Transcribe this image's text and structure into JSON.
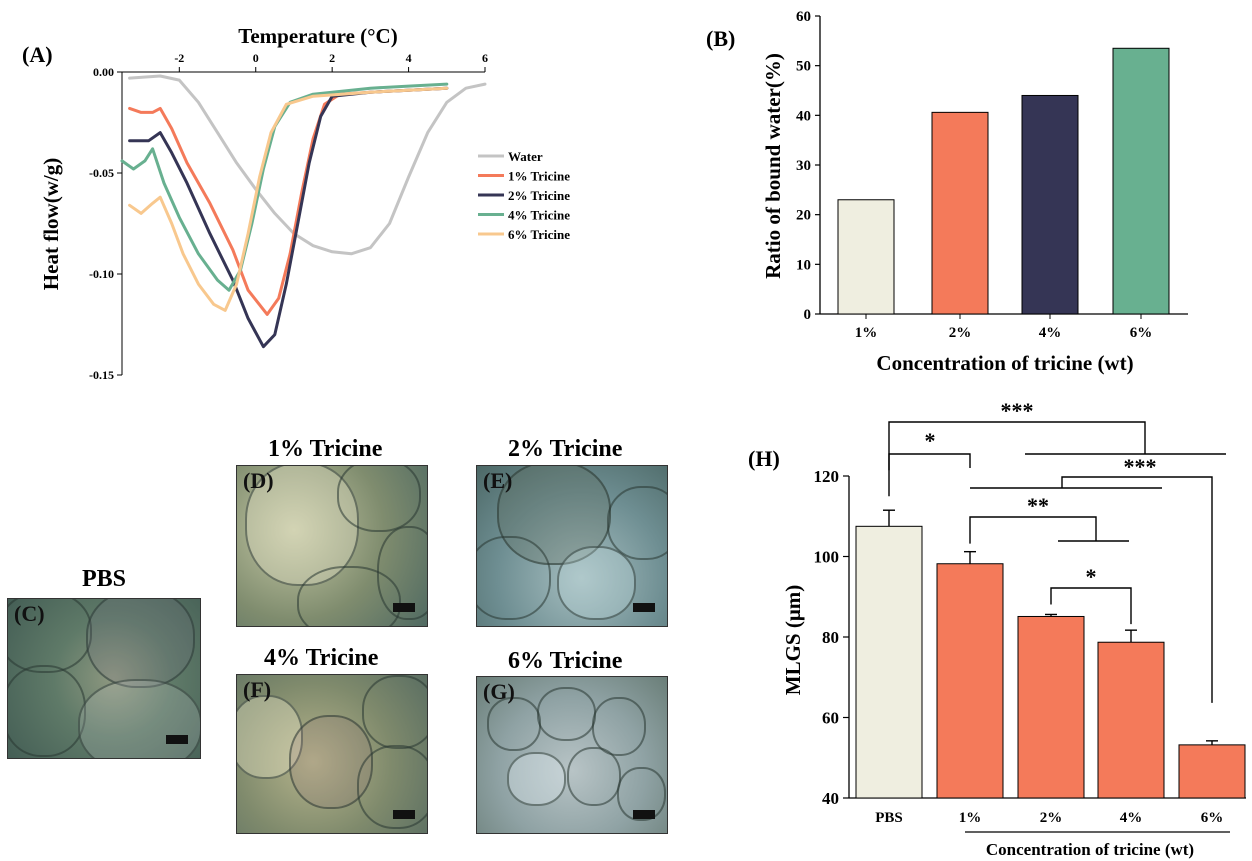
{
  "panel_labels": {
    "A": "(A)",
    "B": "(B)",
    "C": "(C)",
    "D": "(D)",
    "E": "(E)",
    "F": "(F)",
    "G": "(G)",
    "H": "(H)"
  },
  "colors": {
    "water": "#c4c4c4",
    "t1": "#f47a5a",
    "t2": "#353555",
    "t4": "#68b090",
    "t6": "#f8c88e",
    "pbs": "#efeee0"
  },
  "chart_data": [
    {
      "type": "line",
      "panel": "A",
      "xlabel": "Temperature (°C)",
      "ylabel": "Heat flow(w/g)",
      "xlim": [
        -3.5,
        6
      ],
      "ylim": [
        -0.15,
        0.0
      ],
      "xticks": [
        "-2",
        "0",
        "2",
        "4",
        "6"
      ],
      "yticks": [
        "0.00",
        "-0.05",
        "-0.10",
        "-0.15"
      ],
      "legend_position": "right",
      "series": [
        {
          "name": "Water",
          "color": "#c4c4c4",
          "points": [
            [
              -3.3,
              -0.003
            ],
            [
              -2.5,
              -0.002
            ],
            [
              -2.0,
              -0.004
            ],
            [
              -1.5,
              -0.015
            ],
            [
              -1.0,
              -0.03
            ],
            [
              -0.5,
              -0.045
            ],
            [
              0.0,
              -0.058
            ],
            [
              0.5,
              -0.07
            ],
            [
              1.0,
              -0.08
            ],
            [
              1.5,
              -0.086
            ],
            [
              2.0,
              -0.089
            ],
            [
              2.5,
              -0.09
            ],
            [
              3.0,
              -0.087
            ],
            [
              3.5,
              -0.075
            ],
            [
              4.0,
              -0.052
            ],
            [
              4.5,
              -0.03
            ],
            [
              5.0,
              -0.015
            ],
            [
              5.5,
              -0.008
            ],
            [
              6.0,
              -0.006
            ]
          ]
        },
        {
          "name": "1% Tricine",
          "color": "#f47a5a",
          "points": [
            [
              -3.3,
              -0.018
            ],
            [
              -3.0,
              -0.02
            ],
            [
              -2.7,
              -0.02
            ],
            [
              -2.5,
              -0.018
            ],
            [
              -2.2,
              -0.028
            ],
            [
              -1.8,
              -0.045
            ],
            [
              -1.2,
              -0.065
            ],
            [
              -0.6,
              -0.088
            ],
            [
              -0.2,
              -0.108
            ],
            [
              0.3,
              -0.12
            ],
            [
              0.6,
              -0.112
            ],
            [
              0.9,
              -0.09
            ],
            [
              1.2,
              -0.06
            ],
            [
              1.5,
              -0.033
            ],
            [
              1.8,
              -0.016
            ],
            [
              2.2,
              -0.011
            ],
            [
              3.0,
              -0.01
            ],
            [
              4.0,
              -0.009
            ],
            [
              5.0,
              -0.008
            ]
          ]
        },
        {
          "name": "2% Tricine",
          "color": "#353555",
          "points": [
            [
              -3.3,
              -0.034
            ],
            [
              -2.8,
              -0.034
            ],
            [
              -2.5,
              -0.03
            ],
            [
              -2.2,
              -0.04
            ],
            [
              -1.8,
              -0.055
            ],
            [
              -1.2,
              -0.08
            ],
            [
              -0.6,
              -0.103
            ],
            [
              -0.2,
              -0.122
            ],
            [
              0.2,
              -0.136
            ],
            [
              0.5,
              -0.13
            ],
            [
              0.8,
              -0.105
            ],
            [
              1.1,
              -0.075
            ],
            [
              1.4,
              -0.045
            ],
            [
              1.7,
              -0.022
            ],
            [
              2.0,
              -0.012
            ],
            [
              3.0,
              -0.01
            ],
            [
              4.0,
              -0.009
            ],
            [
              5.0,
              -0.008
            ]
          ]
        },
        {
          "name": "4% Tricine",
          "color": "#68b090",
          "points": [
            [
              -3.5,
              -0.044
            ],
            [
              -3.2,
              -0.048
            ],
            [
              -2.9,
              -0.044
            ],
            [
              -2.7,
              -0.038
            ],
            [
              -2.4,
              -0.055
            ],
            [
              -2.0,
              -0.072
            ],
            [
              -1.5,
              -0.09
            ],
            [
              -1.0,
              -0.103
            ],
            [
              -0.7,
              -0.108
            ],
            [
              -0.4,
              -0.098
            ],
            [
              -0.1,
              -0.075
            ],
            [
              0.2,
              -0.048
            ],
            [
              0.5,
              -0.027
            ],
            [
              0.9,
              -0.015
            ],
            [
              1.5,
              -0.011
            ],
            [
              3.0,
              -0.008
            ],
            [
              4.0,
              -0.007
            ],
            [
              5.0,
              -0.006
            ]
          ]
        },
        {
          "name": "6% Tricine",
          "color": "#f8c88e",
          "points": [
            [
              -3.3,
              -0.066
            ],
            [
              -3.0,
              -0.07
            ],
            [
              -2.7,
              -0.065
            ],
            [
              -2.5,
              -0.062
            ],
            [
              -2.2,
              -0.075
            ],
            [
              -1.9,
              -0.09
            ],
            [
              -1.5,
              -0.105
            ],
            [
              -1.1,
              -0.115
            ],
            [
              -0.8,
              -0.118
            ],
            [
              -0.5,
              -0.105
            ],
            [
              -0.2,
              -0.08
            ],
            [
              0.1,
              -0.052
            ],
            [
              0.4,
              -0.03
            ],
            [
              0.8,
              -0.016
            ],
            [
              1.5,
              -0.012
            ],
            [
              3.0,
              -0.01
            ],
            [
              4.0,
              -0.009
            ],
            [
              5.0,
              -0.008
            ]
          ]
        }
      ]
    },
    {
      "type": "bar",
      "panel": "B",
      "categories": [
        "1%",
        "2%",
        "4%",
        "6%"
      ],
      "values": [
        23,
        40.6,
        44,
        53.5
      ],
      "colors": [
        "#efeee0",
        "#f47a5a",
        "#353555",
        "#68b090"
      ],
      "xlabel": "Concentration of tricine (wt)",
      "ylabel": "Ratio of bound water(%)",
      "ylim": [
        0,
        60
      ],
      "yticks": [
        "0",
        "10",
        "20",
        "30",
        "40",
        "50",
        "60"
      ]
    },
    {
      "type": "bar",
      "panel": "H",
      "categories": [
        "PBS",
        "1%",
        "2%",
        "4%",
        "6%"
      ],
      "values": [
        107.5,
        98.2,
        85.1,
        78.7,
        53.2
      ],
      "errors": [
        4.0,
        3.0,
        0.5,
        3.0,
        1.0
      ],
      "colors": [
        "#efeee0",
        "#f47a5a",
        "#f47a5a",
        "#f47a5a",
        "#f47a5a"
      ],
      "xlabel": "Concentration of tricine (wt)",
      "ylabel": "MLGS (μm)",
      "ylim": [
        40,
        120
      ],
      "yticks": [
        "40",
        "60",
        "80",
        "100",
        "120"
      ],
      "significance": [
        "***",
        "*",
        "***",
        "**",
        "*"
      ]
    }
  ],
  "micrographs": [
    {
      "key": "C",
      "title": "PBS"
    },
    {
      "key": "D",
      "title": "1% Tricine"
    },
    {
      "key": "E",
      "title": "2% Tricine"
    },
    {
      "key": "F",
      "title": "4% Tricine"
    },
    {
      "key": "G",
      "title": "6% Tricine"
    }
  ]
}
